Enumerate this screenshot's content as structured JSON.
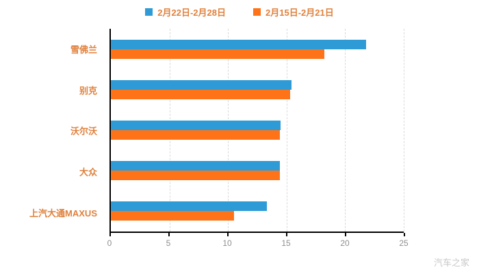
{
  "chart_data": {
    "type": "bar",
    "orientation": "horizontal",
    "title": "",
    "xlabel": "",
    "ylabel": "",
    "categories": [
      "雪佛兰",
      "别克",
      "沃尔沃",
      "大众",
      "上汽大通MAXUS"
    ],
    "series": [
      {
        "name": "2月22日-2月28日",
        "color": "#2e9bd6",
        "values": [
          21.8,
          15.4,
          14.5,
          14.4,
          13.3
        ]
      },
      {
        "name": "2月15日-2月21日",
        "color": "#ff7318",
        "values": [
          18.2,
          15.3,
          14.4,
          14.4,
          10.5
        ]
      }
    ],
    "xlim": [
      0,
      25
    ],
    "xticks": [
      0,
      5,
      10,
      15,
      20,
      25
    ],
    "grid": "vertical-dashed",
    "legend_position": "top"
  },
  "colors": {
    "legend_text": "#e0813c",
    "category_label": "#e0813c",
    "tick_label": "#8f8f8f",
    "axis_line": "#000000",
    "gridline": "#d9d9d9",
    "background": "#ffffff",
    "watermark": "#c8c8c8"
  },
  "watermark": "汽车之家"
}
